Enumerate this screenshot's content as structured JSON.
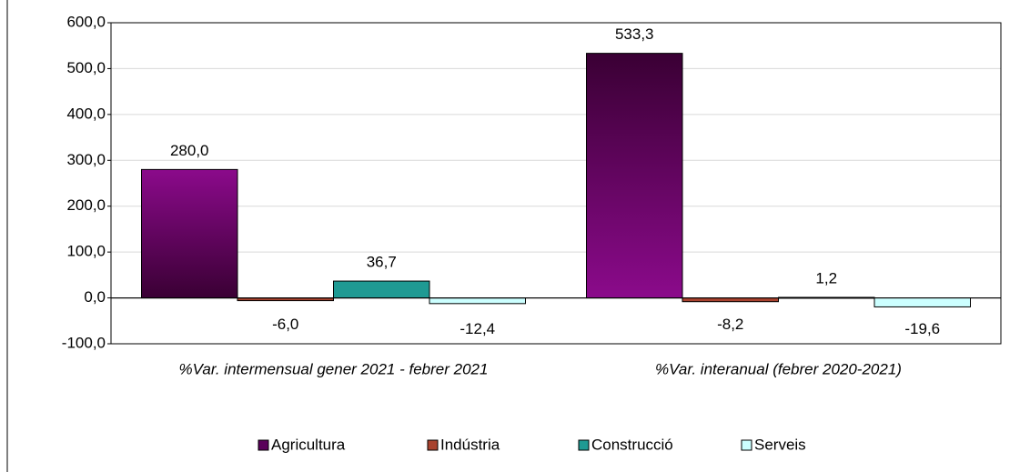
{
  "chart_data": {
    "type": "bar",
    "categories": [
      "%Var. intermensual gener 2021 - febrer 2021",
      "%Var. interanual (febrer 2020-2021)"
    ],
    "series": [
      {
        "name": "Agricultura",
        "color": "#800080",
        "values": [
          280.0,
          533.3
        ],
        "value_labels": [
          "280,0",
          "533,3"
        ]
      },
      {
        "name": "Indústria",
        "color": "#a9432f",
        "values": [
          -6.0,
          -8.2
        ],
        "value_labels": [
          "-6,0",
          "-8,2"
        ]
      },
      {
        "name": "Construcció",
        "color": "#1f9a93",
        "values": [
          36.7,
          1.2
        ],
        "value_labels": [
          "36,7",
          "1,2"
        ]
      },
      {
        "name": "Serveis",
        "color": "#ccffff",
        "values": [
          -12.4,
          -19.6
        ],
        "value_labels": [
          "-12,4",
          "-19,6"
        ]
      }
    ],
    "ylim": [
      -100,
      600
    ],
    "yticks": [
      {
        "value": -100,
        "label": "-100,0"
      },
      {
        "value": 0,
        "label": "0,0"
      },
      {
        "value": 100,
        "label": "100,0"
      },
      {
        "value": 200,
        "label": "200,0"
      },
      {
        "value": 300,
        "label": "300,0"
      },
      {
        "value": 400,
        "label": "400,0"
      },
      {
        "value": 500,
        "label": "500,0"
      },
      {
        "value": 600,
        "label": "600,0"
      }
    ],
    "grid": true,
    "legend": "bottom"
  }
}
